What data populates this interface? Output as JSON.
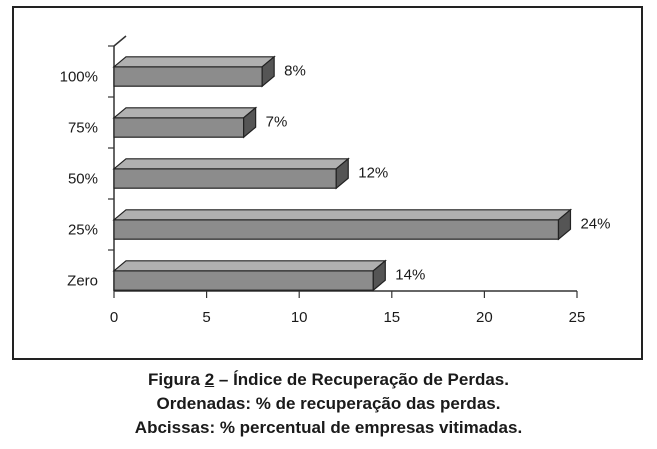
{
  "chart_data": {
    "type": "bar",
    "orientation": "horizontal",
    "style": "3d",
    "categories": [
      "100%",
      "75%",
      "50%",
      "25%",
      "Zero"
    ],
    "values": [
      8,
      7,
      12,
      24,
      14
    ],
    "data_labels": [
      "8%",
      "7%",
      "12%",
      "24%",
      "14%"
    ],
    "xlim": [
      0,
      25
    ],
    "x_ticks": [
      0,
      5,
      10,
      15,
      20,
      25
    ],
    "x_tick_labels": [
      "0",
      "5",
      "10",
      "15",
      "20",
      "25"
    ],
    "grid": false,
    "legend": "none",
    "bar_color": "#8c8c8c"
  },
  "caption": {
    "prefix": "Figura ",
    "number": "2",
    "title": " – Índice de Recuperação de Perdas.",
    "line2": "Ordenadas: % de recuperação das perdas.",
    "line3": "Abcissas: % percentual de empresas vitimadas."
  }
}
